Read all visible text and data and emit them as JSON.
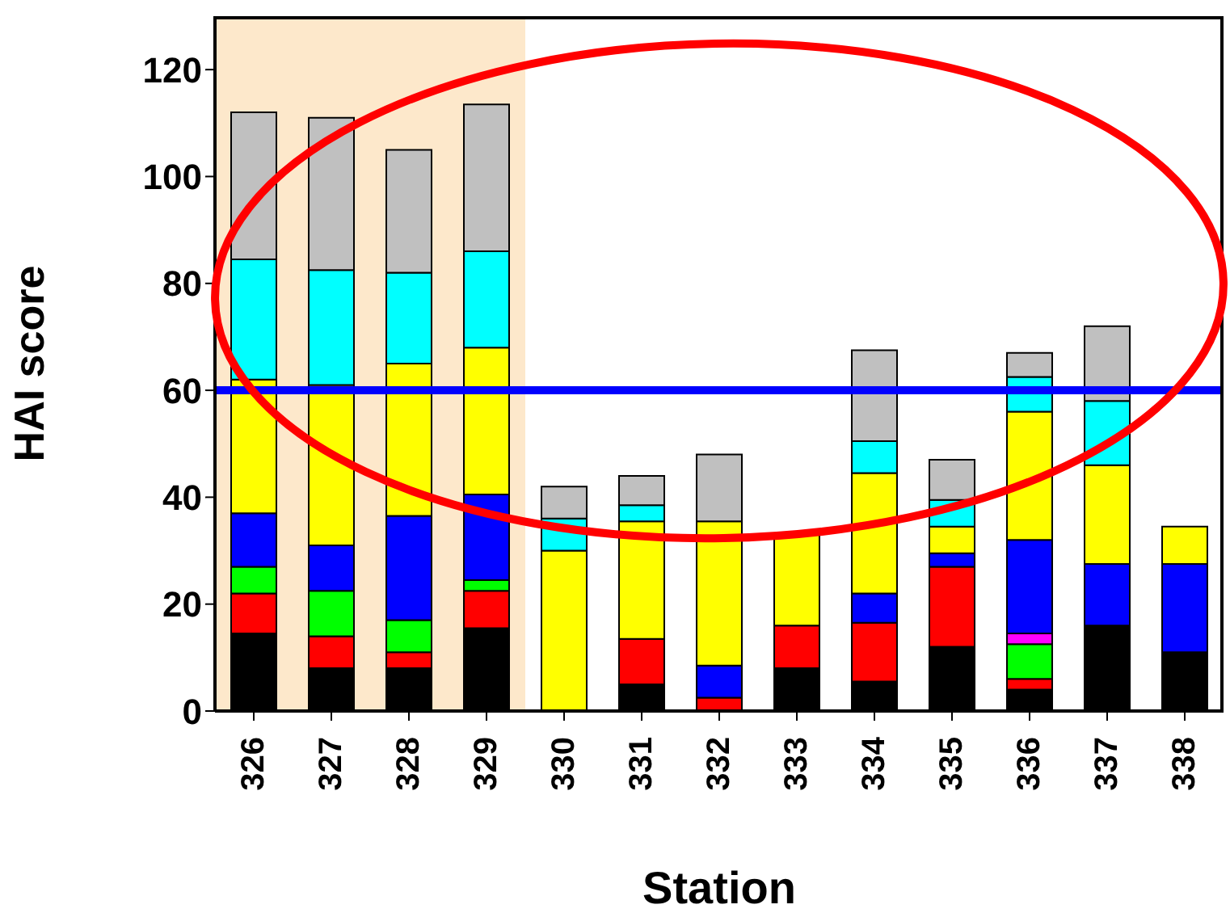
{
  "chart_data": {
    "type": "bar",
    "stacked": true,
    "xlabel": "Station",
    "ylabel": "HAI score",
    "categories": [
      "326",
      "327",
      "328",
      "329",
      "330",
      "331",
      "332",
      "333",
      "334",
      "335",
      "336",
      "337",
      "338"
    ],
    "series": [
      {
        "color": "#000000",
        "values": [
          14.5,
          8,
          8,
          15.5,
          0,
          5,
          0,
          8,
          5.5,
          12,
          4,
          16,
          11
        ]
      },
      {
        "color": "#ff0000",
        "values": [
          7.5,
          6,
          3,
          7,
          0,
          8.5,
          2.5,
          8,
          11,
          15,
          2,
          0,
          0
        ]
      },
      {
        "color": "#00ff00",
        "values": [
          5,
          8.5,
          6,
          2,
          0,
          0,
          0,
          0,
          0,
          0,
          6.5,
          0,
          0
        ]
      },
      {
        "color": "#ff00ff",
        "values": [
          0,
          0,
          0,
          0,
          0,
          0,
          0,
          0,
          0,
          0,
          2,
          0,
          0
        ]
      },
      {
        "color": "#0000ff",
        "values": [
          10,
          8.5,
          19.5,
          16,
          0,
          0,
          6,
          0,
          5.5,
          2.5,
          17.5,
          11.5,
          16.5
        ]
      },
      {
        "color": "#ffff00",
        "values": [
          25,
          30,
          28.5,
          27.5,
          30,
          22,
          27,
          17,
          22.5,
          5,
          24,
          18.5,
          7
        ]
      },
      {
        "color": "#00ffff",
        "values": [
          22.5,
          21.5,
          17,
          18,
          6,
          3,
          0,
          0,
          6,
          5,
          6.5,
          12,
          0
        ]
      },
      {
        "color": "#c0c0c0",
        "values": [
          27.5,
          28.5,
          23,
          27.5,
          6,
          5.5,
          12.5,
          0,
          17,
          7.5,
          4.5,
          14,
          0
        ]
      }
    ],
    "ylim": [
      0,
      130
    ],
    "yticks": [
      0,
      20,
      40,
      60,
      80,
      100,
      120
    ],
    "grid": false,
    "legend": false,
    "ref_lines": [
      {
        "axis": "y",
        "value": 60,
        "color": "#0000ff"
      }
    ],
    "bands": [
      {
        "axis": "x",
        "from": "326",
        "to": "329",
        "color": "#fbd9a8"
      }
    ]
  }
}
